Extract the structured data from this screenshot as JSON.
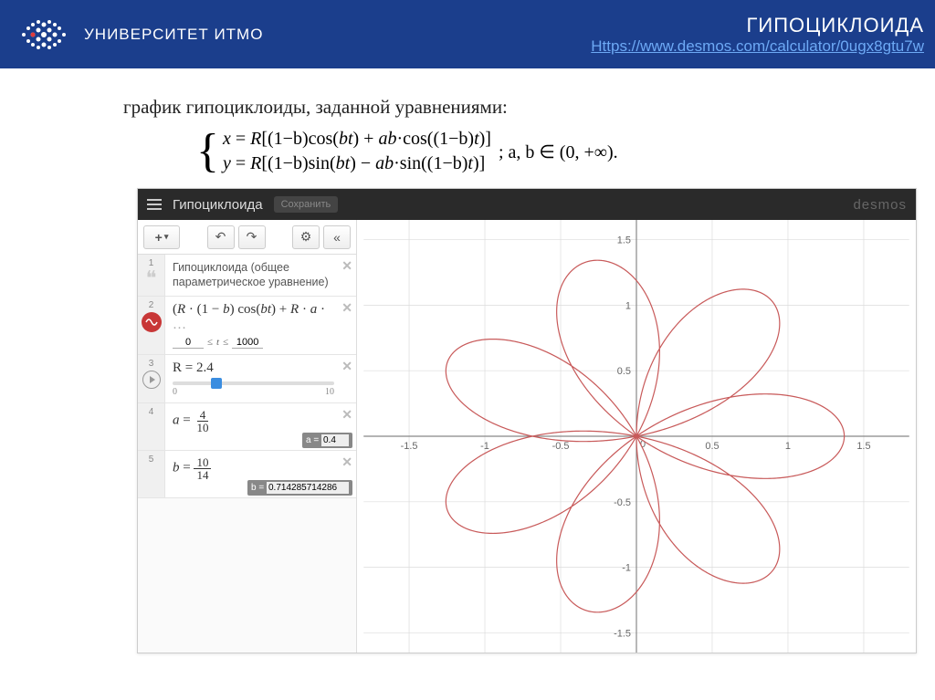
{
  "header": {
    "university": "УНИВЕРСИТЕТ ИТМО",
    "title": "ГИПОЦИКЛОИДА",
    "link": "Https://www.desmos.com/calculator/0ugx8gtu7w"
  },
  "caption": "график  гипоциклоиды, заданной уравнениями:",
  "equations": {
    "x": "x = R[(1−b)cos(bt) + ab·cos((1−b)t)]",
    "y": "y = R[(1−b)sin(bt) − ab·sin((1−b)t)]",
    "suffix": "; a, b ∈ (0, +∞)."
  },
  "desmos": {
    "title": "Гипоциклоида",
    "save": "Сохранить",
    "brand": "desmos",
    "toolbar": {
      "add": "+",
      "undo": "↶",
      "redo": "↷",
      "gear": "⚙",
      "collapse": "«"
    },
    "rows": [
      {
        "n": "1",
        "type": "folder",
        "text": "Гипоциклоида (общее параметрическое уравнение)"
      },
      {
        "n": "2",
        "type": "expr",
        "formula": "(R · (1 − b) cos(bt) + R · a · …",
        "tmin": "0",
        "tmax": "1000"
      },
      {
        "n": "3",
        "type": "slider",
        "label": "R = 2.4",
        "min": "0",
        "max": "10",
        "pos": 0.24
      },
      {
        "n": "4",
        "type": "frac",
        "var": "a",
        "num": "4",
        "den": "10",
        "readoutLabel": "a =",
        "readout": "0.4"
      },
      {
        "n": "5",
        "type": "frac",
        "var": "b",
        "num": "10",
        "den": "14",
        "readoutLabel": "b =",
        "readout": "0.714285714286"
      }
    ]
  },
  "chart": {
    "type": "parametric-curve",
    "R": 2.4,
    "a": 0.4,
    "b": 0.7142857,
    "xlim": [
      -1.8,
      1.8
    ],
    "ylim": [
      -1.65,
      1.65
    ],
    "ticks": [
      -1.5,
      -1,
      -0.5,
      0,
      0.5,
      1,
      1.5
    ],
    "grid_color": "#dcdcdc",
    "axis_color": "#888888",
    "curve_color": "#c85a5a",
    "curve_width": 1.2,
    "background": "#ffffff",
    "label_fontsize": 11
  }
}
